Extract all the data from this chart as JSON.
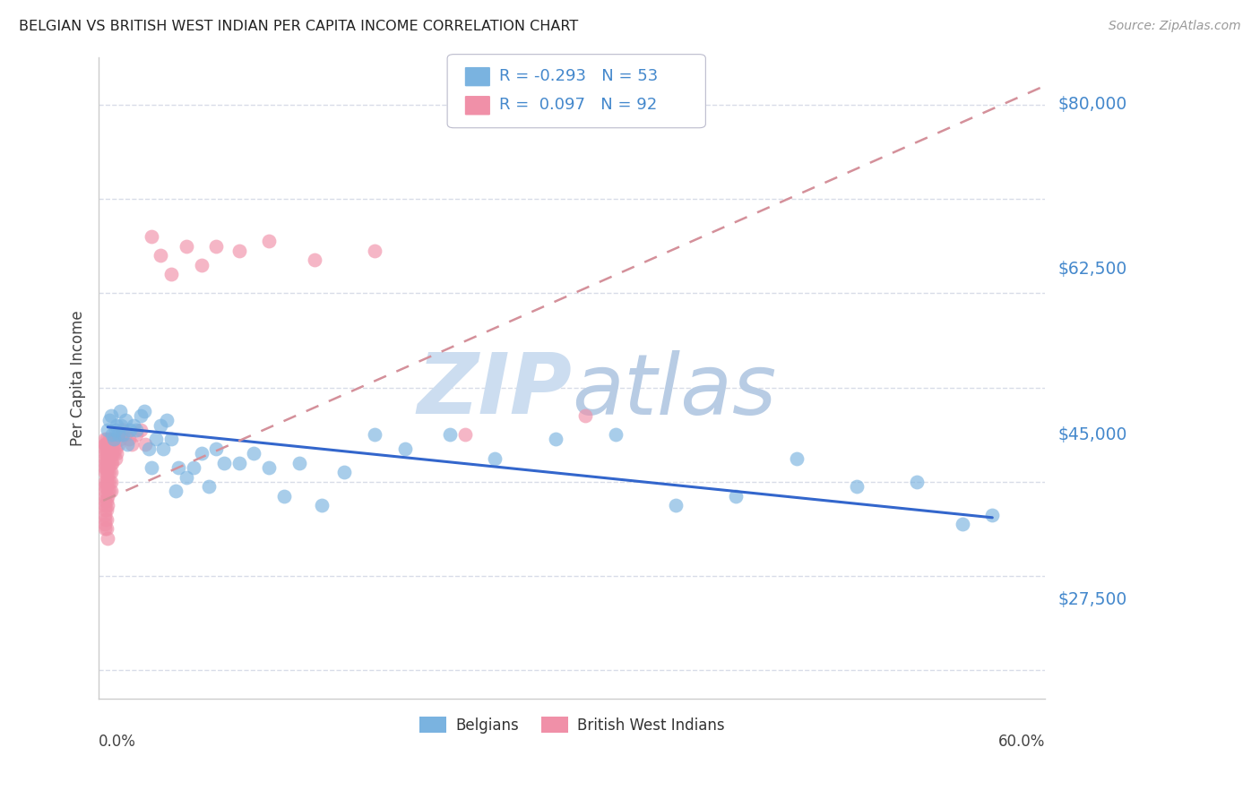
{
  "title": "BELGIAN VS BRITISH WEST INDIAN PER CAPITA INCOME CORRELATION CHART",
  "source": "Source: ZipAtlas.com",
  "ylabel": "Per Capita Income",
  "ytick_labels": [
    "$27,500",
    "$45,000",
    "$62,500",
    "$80,000"
  ],
  "ytick_values": [
    27500,
    45000,
    62500,
    80000
  ],
  "ymin": 17000,
  "ymax": 85000,
  "xmin": -0.003,
  "xmax": 0.625,
  "legend_blue_r": "-0.293",
  "legend_blue_n": "53",
  "legend_pink_r": "0.097",
  "legend_pink_n": "92",
  "blue_color": "#7ab3e0",
  "pink_color": "#f090a8",
  "line_blue_color": "#3366cc",
  "line_pink_color": "#d4909a",
  "watermark_color": "#ccddf0",
  "axis_label_color": "#4488cc",
  "grid_color": "#d8dce8",
  "background_color": "#ffffff",
  "belgians_x": [
    0.003,
    0.004,
    0.005,
    0.006,
    0.007,
    0.008,
    0.009,
    0.01,
    0.011,
    0.012,
    0.013,
    0.015,
    0.016,
    0.018,
    0.02,
    0.022,
    0.025,
    0.027,
    0.03,
    0.032,
    0.035,
    0.038,
    0.04,
    0.042,
    0.045,
    0.048,
    0.05,
    0.055,
    0.06,
    0.065,
    0.07,
    0.075,
    0.08,
    0.09,
    0.1,
    0.11,
    0.12,
    0.13,
    0.145,
    0.16,
    0.18,
    0.2,
    0.23,
    0.26,
    0.3,
    0.34,
    0.38,
    0.42,
    0.46,
    0.5,
    0.54,
    0.57,
    0.59
  ],
  "belgians_y": [
    45500,
    46500,
    47000,
    45000,
    44500,
    45500,
    46000,
    45000,
    47500,
    46000,
    45000,
    46500,
    44000,
    45500,
    46000,
    45500,
    47000,
    47500,
    43500,
    41500,
    44500,
    46000,
    43500,
    46500,
    44500,
    39000,
    41500,
    40500,
    41500,
    43000,
    39500,
    43500,
    42000,
    42000,
    43000,
    41500,
    38500,
    42000,
    37500,
    41000,
    45000,
    43500,
    45000,
    42500,
    44500,
    45000,
    37500,
    38500,
    42500,
    39500,
    40000,
    35500,
    36500
  ],
  "bwi_x": [
    0.001,
    0.001,
    0.001,
    0.001,
    0.001,
    0.001,
    0.001,
    0.001,
    0.001,
    0.001,
    0.001,
    0.001,
    0.001,
    0.001,
    0.001,
    0.001,
    0.001,
    0.001,
    0.001,
    0.001,
    0.002,
    0.002,
    0.002,
    0.002,
    0.002,
    0.002,
    0.002,
    0.002,
    0.002,
    0.002,
    0.002,
    0.002,
    0.002,
    0.002,
    0.002,
    0.003,
    0.003,
    0.003,
    0.003,
    0.003,
    0.003,
    0.003,
    0.003,
    0.003,
    0.003,
    0.003,
    0.003,
    0.004,
    0.004,
    0.004,
    0.004,
    0.004,
    0.004,
    0.004,
    0.004,
    0.005,
    0.005,
    0.005,
    0.005,
    0.005,
    0.005,
    0.005,
    0.006,
    0.006,
    0.006,
    0.007,
    0.007,
    0.008,
    0.008,
    0.009,
    0.01,
    0.011,
    0.012,
    0.013,
    0.015,
    0.017,
    0.019,
    0.022,
    0.025,
    0.028,
    0.032,
    0.038,
    0.045,
    0.055,
    0.065,
    0.075,
    0.09,
    0.11,
    0.14,
    0.18,
    0.24,
    0.32
  ],
  "bwi_y": [
    44000,
    43000,
    44500,
    42500,
    41500,
    44000,
    43500,
    42000,
    41000,
    40000,
    39500,
    39000,
    38500,
    38000,
    37500,
    37000,
    36500,
    36000,
    35500,
    35000,
    44500,
    44000,
    43500,
    43000,
    42500,
    42000,
    41500,
    41000,
    40500,
    40000,
    39500,
    38000,
    37000,
    36000,
    35000,
    44000,
    43500,
    43000,
    42500,
    42000,
    41500,
    41000,
    40000,
    39000,
    38500,
    37500,
    34000,
    44500,
    44000,
    43500,
    43000,
    42000,
    41000,
    40000,
    39000,
    44500,
    44000,
    43000,
    42000,
    41000,
    40000,
    39000,
    44000,
    43000,
    42000,
    44000,
    43000,
    43500,
    42500,
    43000,
    44000,
    44500,
    45000,
    45500,
    45000,
    44500,
    44000,
    45000,
    45500,
    44000,
    66000,
    64000,
    62000,
    65000,
    63000,
    65000,
    64500,
    65500,
    63500,
    64500,
    45000,
    47000
  ],
  "blue_line_x": [
    0.003,
    0.59
  ],
  "blue_line_y": [
    45800,
    36200
  ],
  "pink_line_x": [
    0.0,
    0.625
  ],
  "pink_line_y": [
    38000,
    82000
  ]
}
